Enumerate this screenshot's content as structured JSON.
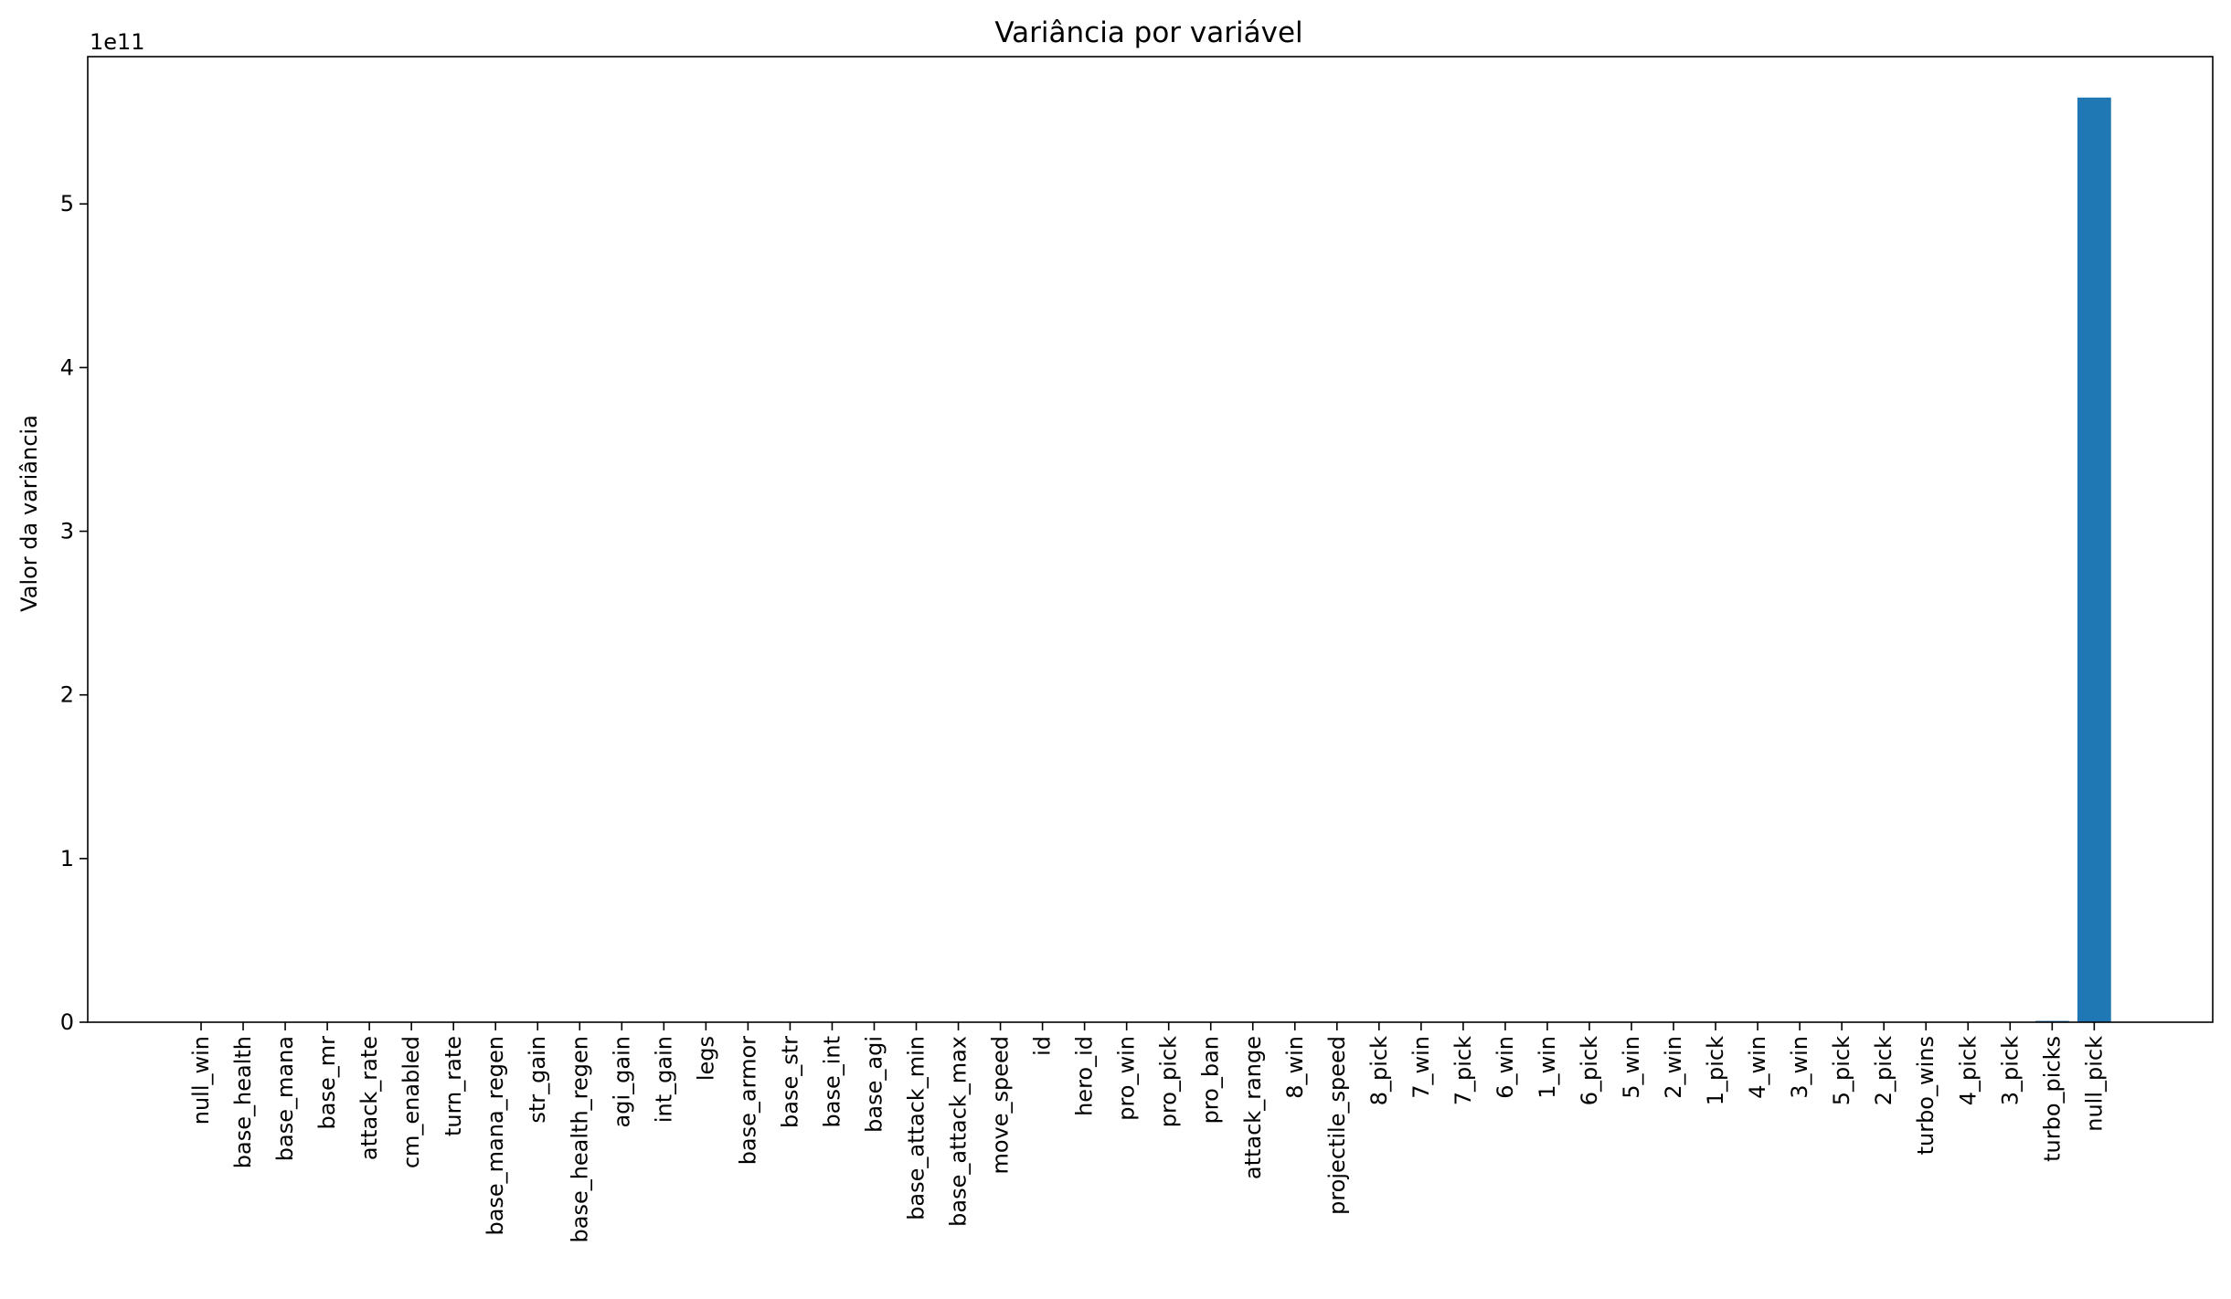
{
  "chart_data": {
    "type": "bar",
    "title": "Variância por variável",
    "xlabel": "",
    "ylabel": "Valor da variância",
    "y_offset_label": "1e11",
    "y_scale": 100000000000.0,
    "ylim": [
      0,
      5.9
    ],
    "yticks": [
      0,
      1,
      2,
      3,
      4,
      5
    ],
    "grid": false,
    "bar_color": "#1f77b4",
    "categories": [
      "null_win",
      "base_health",
      "base_mana",
      "base_mr",
      "attack_rate",
      "cm_enabled",
      "turn_rate",
      "base_mana_regen",
      "str_gain",
      "base_health_regen",
      "agi_gain",
      "int_gain",
      "legs",
      "base_armor",
      "base_str",
      "base_int",
      "base_agi",
      "base_attack_min",
      "base_attack_max",
      "move_speed",
      "id",
      "hero_id",
      "pro_win",
      "pro_pick",
      "pro_ban",
      "attack_range",
      "8_win",
      "projectile_speed",
      "8_pick",
      "7_win",
      "7_pick",
      "6_win",
      "1_win",
      "6_pick",
      "5_win",
      "2_win",
      "1_pick",
      "4_win",
      "3_win",
      "5_pick",
      "2_pick",
      "turbo_wins",
      "4_pick",
      "3_pick",
      "turbo_picks",
      "null_pick"
    ],
    "values": [
      0,
      0,
      0,
      0,
      0,
      0,
      0,
      0,
      0,
      0,
      0,
      0,
      0,
      0,
      0,
      0,
      0,
      0,
      0,
      0,
      0,
      0,
      0,
      0,
      0,
      0,
      0,
      0,
      0,
      0,
      0,
      0,
      0,
      0,
      0,
      0,
      0,
      0,
      0,
      0,
      0,
      0,
      0,
      0,
      0.008,
      5.65
    ]
  }
}
